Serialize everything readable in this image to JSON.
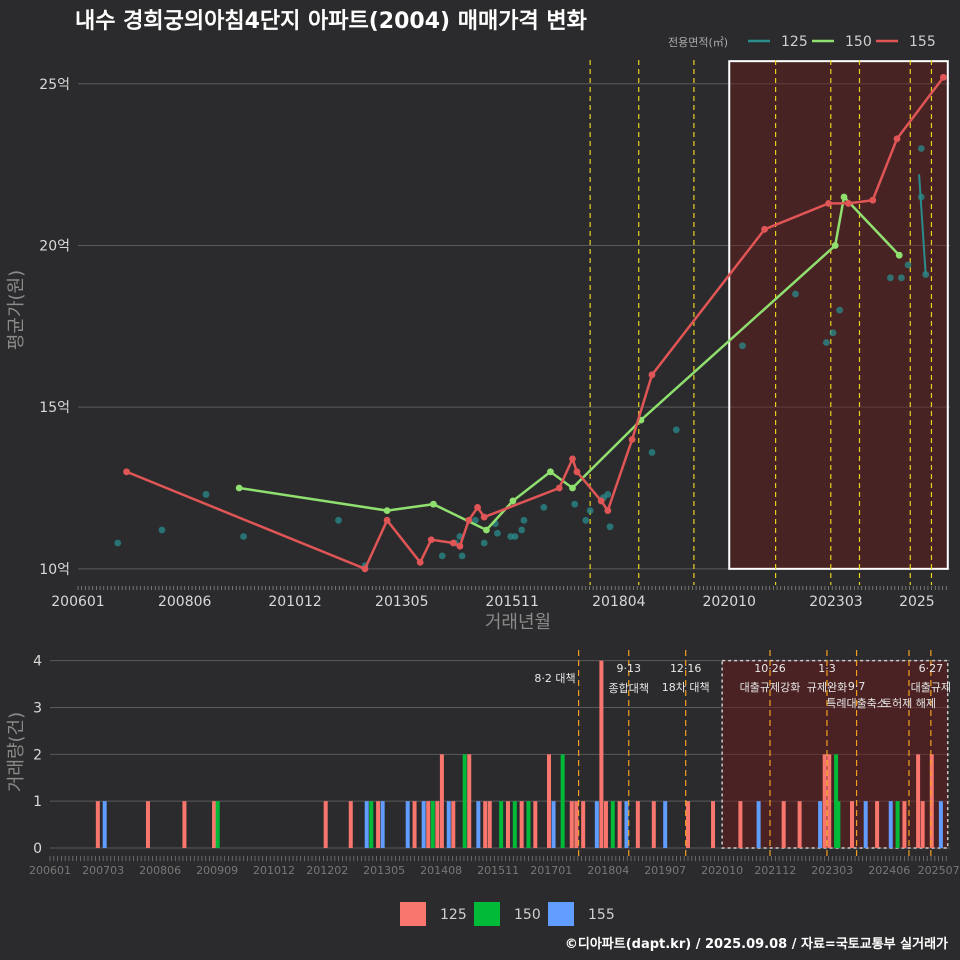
{
  "title": "내수 경희궁의아침4단지 아파트(2004) 매매가격 변화",
  "footer": "©디아파트(dapt.kr) / 2025.09.08 / 자료=국토교통부 실거래가",
  "legend_top": {
    "title": "전용면적(㎡)",
    "items": [
      {
        "label": "125",
        "color": "#2a8c8c"
      },
      {
        "label": "150",
        "color": "#90e070"
      },
      {
        "label": "155",
        "color": "#e05555"
      }
    ]
  },
  "legend_bottom": {
    "items": [
      {
        "label": "125",
        "color": "#f8766d"
      },
      {
        "label": "150",
        "color": "#00ba38"
      },
      {
        "label": "155",
        "color": "#619cff"
      }
    ]
  },
  "chart_data": [
    {
      "type": "line",
      "xlabel": "거래년월",
      "ylabel": "평균가(원)",
      "x_ticks": [
        "200601",
        "200806",
        "201012",
        "201305",
        "201511",
        "201804",
        "202010",
        "202303",
        "2025"
      ],
      "y_ticks": [
        "10억",
        "15억",
        "20억",
        "25억"
      ],
      "ylim": [
        9.5,
        26.2
      ],
      "xlim": [
        2006.0,
        2025.75
      ],
      "grid": true,
      "highlight_box": {
        "x_from": 2020.75,
        "x_to": 2025.7,
        "y_from": 10.0,
        "y_to": 25.7
      },
      "policy_lines": [
        2017.6,
        2018.7,
        2019.95,
        2021.8,
        2023.05,
        2023.7,
        2024.85,
        2025.33
      ],
      "series": [
        {
          "name": "125",
          "points_only": [
            [
              2006.9,
              10.8
            ],
            [
              2007.9,
              11.2
            ],
            [
              2008.9,
              12.3
            ],
            [
              2009.75,
              11.0
            ],
            [
              2011.9,
              11.5
            ],
            [
              2012.5,
              10.1
            ],
            [
              2014.25,
              10.4
            ],
            [
              2014.55,
              10.8
            ],
            [
              2014.7,
              10.4
            ],
            [
              2014.65,
              11.0
            ],
            [
              2015.0,
              11.5
            ],
            [
              2015.2,
              10.8
            ],
            [
              2015.45,
              11.4
            ],
            [
              2015.5,
              11.1
            ],
            [
              2015.8,
              11.0
            ],
            [
              2015.9,
              11.0
            ],
            [
              2016.05,
              11.2
            ],
            [
              2016.1,
              11.5
            ],
            [
              2016.55,
              11.9
            ],
            [
              2017.25,
              12.0
            ],
            [
              2017.5,
              11.5
            ],
            [
              2017.6,
              11.8
            ],
            [
              2017.9,
              12.2
            ],
            [
              2018.0,
              12.3
            ],
            [
              2018.05,
              11.3
            ],
            [
              2019.0,
              13.6
            ],
            [
              2019.55,
              14.3
            ],
            [
              2021.05,
              16.9
            ],
            [
              2022.25,
              18.5
            ],
            [
              2022.95,
              17.0
            ],
            [
              2023.1,
              17.3
            ],
            [
              2023.25,
              18.0
            ],
            [
              2024.4,
              19.0
            ],
            [
              2024.65,
              19.0
            ],
            [
              2024.8,
              19.4
            ],
            [
              2025.1,
              21.5
            ],
            [
              2025.1,
              23.0
            ],
            [
              2025.2,
              19.1
            ]
          ],
          "line": [
            [
              2025.05,
              22.2
            ],
            [
              2025.2,
              19.1
            ]
          ]
        },
        {
          "name": "150",
          "values": [
            [
              2009.65,
              12.5
            ],
            [
              2013.0,
              11.8
            ],
            [
              2014.05,
              12.0
            ],
            [
              2015.25,
              11.2
            ],
            [
              2015.85,
              12.1
            ],
            [
              2016.7,
              13.0
            ],
            [
              2017.2,
              12.5
            ],
            [
              2018.75,
              14.6
            ],
            [
              2023.15,
              20.0
            ],
            [
              2023.35,
              21.5
            ],
            [
              2024.6,
              19.7
            ]
          ]
        },
        {
          "name": "155",
          "values": [
            [
              2007.1,
              13.0
            ],
            [
              2012.5,
              10.0
            ],
            [
              2013.0,
              11.5
            ],
            [
              2013.75,
              10.2
            ],
            [
              2014.0,
              10.9
            ],
            [
              2014.5,
              10.8
            ],
            [
              2014.65,
              10.7
            ],
            [
              2014.85,
              11.5
            ],
            [
              2015.05,
              11.9
            ],
            [
              2015.2,
              11.6
            ],
            [
              2016.9,
              12.5
            ],
            [
              2017.2,
              13.4
            ],
            [
              2017.3,
              13.0
            ],
            [
              2017.85,
              12.1
            ],
            [
              2018.0,
              11.8
            ],
            [
              2018.55,
              14.0
            ],
            [
              2019.0,
              16.0
            ],
            [
              2021.55,
              20.5
            ],
            [
              2023.0,
              21.3
            ],
            [
              2023.45,
              21.3
            ],
            [
              2024.0,
              21.4
            ],
            [
              2024.55,
              23.3
            ],
            [
              2025.6,
              25.2
            ]
          ]
        }
      ]
    },
    {
      "type": "bar",
      "ylabel": "거래량(건)",
      "y_ticks": [
        "0",
        "1",
        "2",
        "3",
        "4"
      ],
      "ylim": [
        0,
        4.1
      ],
      "x_ticks": [
        "200601",
        "200703",
        "200806",
        "200909",
        "201012",
        "201202",
        "201305",
        "201408",
        "201511",
        "201701",
        "201804",
        "201907",
        "202010",
        "202112",
        "202303",
        "202406",
        "202507"
      ],
      "policies": [
        {
          "date": "8·2 대책",
          "x": 2017.6
        },
        {
          "date": "9·13",
          "label": "종합대책",
          "x": 2018.7
        },
        {
          "date": "12·16",
          "label": "18차 대책",
          "x": 2019.95
        },
        {
          "date": "10·26",
          "label": "대출규제강화",
          "x": 2021.8
        },
        {
          "date": "1·3",
          "label": "규제완화",
          "x": 2023.05
        },
        {
          "date": "9·7",
          "label": "특례대출축소",
          "x": 2023.7
        },
        {
          "date": "",
          "label": "토허제 해제",
          "x": 2024.85
        },
        {
          "date": "6·27",
          "label": "대출규제",
          "x": 2025.33
        }
      ],
      "bars": [
        {
          "x": 2007.05,
          "v": 1,
          "s": "125"
        },
        {
          "x": 2007.2,
          "v": 1,
          "s": "155"
        },
        {
          "x": 2008.15,
          "v": 1,
          "s": "125"
        },
        {
          "x": 2008.95,
          "v": 1,
          "s": "125"
        },
        {
          "x": 2009.6,
          "v": 1,
          "s": "125"
        },
        {
          "x": 2009.68,
          "v": 1,
          "s": "150"
        },
        {
          "x": 2012.05,
          "v": 1,
          "s": "125"
        },
        {
          "x": 2012.6,
          "v": 1,
          "s": "125"
        },
        {
          "x": 2012.95,
          "v": 1,
          "s": "155"
        },
        {
          "x": 2013.05,
          "v": 1,
          "s": "150"
        },
        {
          "x": 2013.2,
          "v": 1,
          "s": "125"
        },
        {
          "x": 2013.3,
          "v": 1,
          "s": "155"
        },
        {
          "x": 2013.85,
          "v": 1,
          "s": "155"
        },
        {
          "x": 2014.0,
          "v": 1,
          "s": "125"
        },
        {
          "x": 2014.2,
          "v": 1,
          "s": "155"
        },
        {
          "x": 2014.3,
          "v": 1,
          "s": "125"
        },
        {
          "x": 2014.4,
          "v": 1,
          "s": "150"
        },
        {
          "x": 2014.5,
          "v": 1,
          "s": "125"
        },
        {
          "x": 2014.6,
          "v": 2,
          "s": "125"
        },
        {
          "x": 2014.75,
          "v": 1,
          "s": "155"
        },
        {
          "x": 2014.85,
          "v": 1,
          "s": "125"
        },
        {
          "x": 2015.1,
          "v": 2,
          "s": "150"
        },
        {
          "x": 2015.2,
          "v": 2,
          "s": "125"
        },
        {
          "x": 2015.4,
          "v": 1,
          "s": "155"
        },
        {
          "x": 2015.55,
          "v": 1,
          "s": "125"
        },
        {
          "x": 2015.65,
          "v": 1,
          "s": "125"
        },
        {
          "x": 2015.9,
          "v": 1,
          "s": "150"
        },
        {
          "x": 2016.05,
          "v": 1,
          "s": "125"
        },
        {
          "x": 2016.2,
          "v": 1,
          "s": "150"
        },
        {
          "x": 2016.35,
          "v": 1,
          "s": "125"
        },
        {
          "x": 2016.5,
          "v": 1,
          "s": "150"
        },
        {
          "x": 2016.65,
          "v": 1,
          "s": "125"
        },
        {
          "x": 2016.95,
          "v": 2,
          "s": "125"
        },
        {
          "x": 2017.05,
          "v": 1,
          "s": "155"
        },
        {
          "x": 2017.25,
          "v": 2,
          "s": "150"
        },
        {
          "x": 2017.45,
          "v": 1,
          "s": "125"
        },
        {
          "x": 2017.55,
          "v": 1,
          "s": "125"
        },
        {
          "x": 2017.7,
          "v": 1,
          "s": "125"
        },
        {
          "x": 2018.0,
          "v": 1,
          "s": "155"
        },
        {
          "x": 2018.1,
          "v": 4,
          "s": "125"
        },
        {
          "x": 2018.2,
          "v": 1,
          "s": "125"
        },
        {
          "x": 2018.35,
          "v": 1,
          "s": "150"
        },
        {
          "x": 2018.5,
          "v": 1,
          "s": "125"
        },
        {
          "x": 2018.65,
          "v": 1,
          "s": "155"
        },
        {
          "x": 2018.9,
          "v": 1,
          "s": "125"
        },
        {
          "x": 2019.25,
          "v": 1,
          "s": "125"
        },
        {
          "x": 2019.5,
          "v": 1,
          "s": "155"
        },
        {
          "x": 2020.0,
          "v": 1,
          "s": "125"
        },
        {
          "x": 2020.55,
          "v": 1,
          "s": "125"
        },
        {
          "x": 2021.15,
          "v": 1,
          "s": "125"
        },
        {
          "x": 2021.55,
          "v": 1,
          "s": "155"
        },
        {
          "x": 2022.1,
          "v": 1,
          "s": "125"
        },
        {
          "x": 2022.45,
          "v": 1,
          "s": "125"
        },
        {
          "x": 2022.9,
          "v": 1,
          "s": "155"
        },
        {
          "x": 2023.0,
          "v": 2,
          "s": "125"
        },
        {
          "x": 2023.1,
          "v": 2,
          "s": "125"
        },
        {
          "x": 2023.25,
          "v": 2,
          "s": "150"
        },
        {
          "x": 2023.3,
          "v": 1,
          "s": "150"
        },
        {
          "x": 2023.6,
          "v": 1,
          "s": "125"
        },
        {
          "x": 2023.9,
          "v": 1,
          "s": "155"
        },
        {
          "x": 2024.15,
          "v": 1,
          "s": "125"
        },
        {
          "x": 2024.45,
          "v": 1,
          "s": "155"
        },
        {
          "x": 2024.6,
          "v": 1,
          "s": "150"
        },
        {
          "x": 2024.75,
          "v": 1,
          "s": "125"
        },
        {
          "x": 2025.05,
          "v": 2,
          "s": "125"
        },
        {
          "x": 2025.15,
          "v": 1,
          "s": "125"
        },
        {
          "x": 2025.35,
          "v": 2,
          "s": "125"
        },
        {
          "x": 2025.55,
          "v": 1,
          "s": "155"
        }
      ]
    }
  ]
}
